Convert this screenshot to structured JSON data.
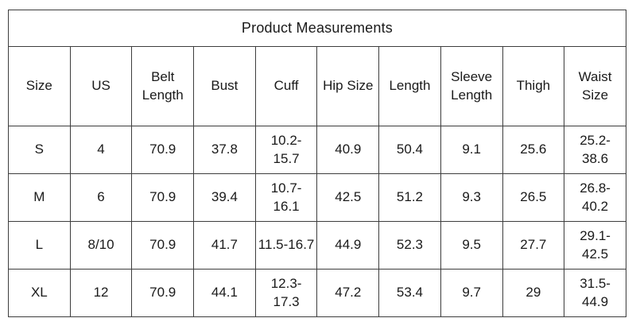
{
  "chart_data": {
    "type": "table",
    "title": "Product Measurements",
    "columns": [
      "Size",
      "US",
      "Belt Length",
      "Bust",
      "Cuff",
      "Hip Size",
      "Length",
      "Sleeve Length",
      "Thigh",
      "Waist Size"
    ],
    "rows": [
      [
        "S",
        "4",
        "70.9",
        "37.8",
        "10.2-15.7",
        "40.9",
        "50.4",
        "9.1",
        "25.6",
        "25.2-38.6"
      ],
      [
        "M",
        "6",
        "70.9",
        "39.4",
        "10.7-16.1",
        "42.5",
        "51.2",
        "9.3",
        "26.5",
        "26.8-40.2"
      ],
      [
        "L",
        "8/10",
        "70.9",
        "41.7",
        "11.5-16.7",
        "44.9",
        "52.3",
        "9.5",
        "27.7",
        "29.1-42.5"
      ],
      [
        "XL",
        "12",
        "70.9",
        "44.1",
        "12.3-17.3",
        "47.2",
        "53.4",
        "9.7",
        "29",
        "31.5-44.9"
      ]
    ],
    "layout": {
      "grid": "all-borders",
      "title_position": "top-merged-row",
      "text_align": "center"
    }
  },
  "colors": {
    "background": "#ffffff",
    "border": "#3d3d3d",
    "text": "#1a1a1a"
  }
}
